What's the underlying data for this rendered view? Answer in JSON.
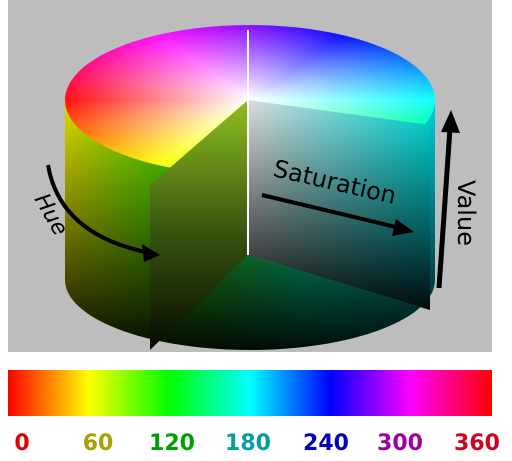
{
  "labels": {
    "hue": "Hue",
    "saturation": "Saturation",
    "value": "Value"
  },
  "scale": {
    "ticks": [
      "0",
      "60",
      "120",
      "180",
      "240",
      "300",
      "360"
    ]
  }
}
